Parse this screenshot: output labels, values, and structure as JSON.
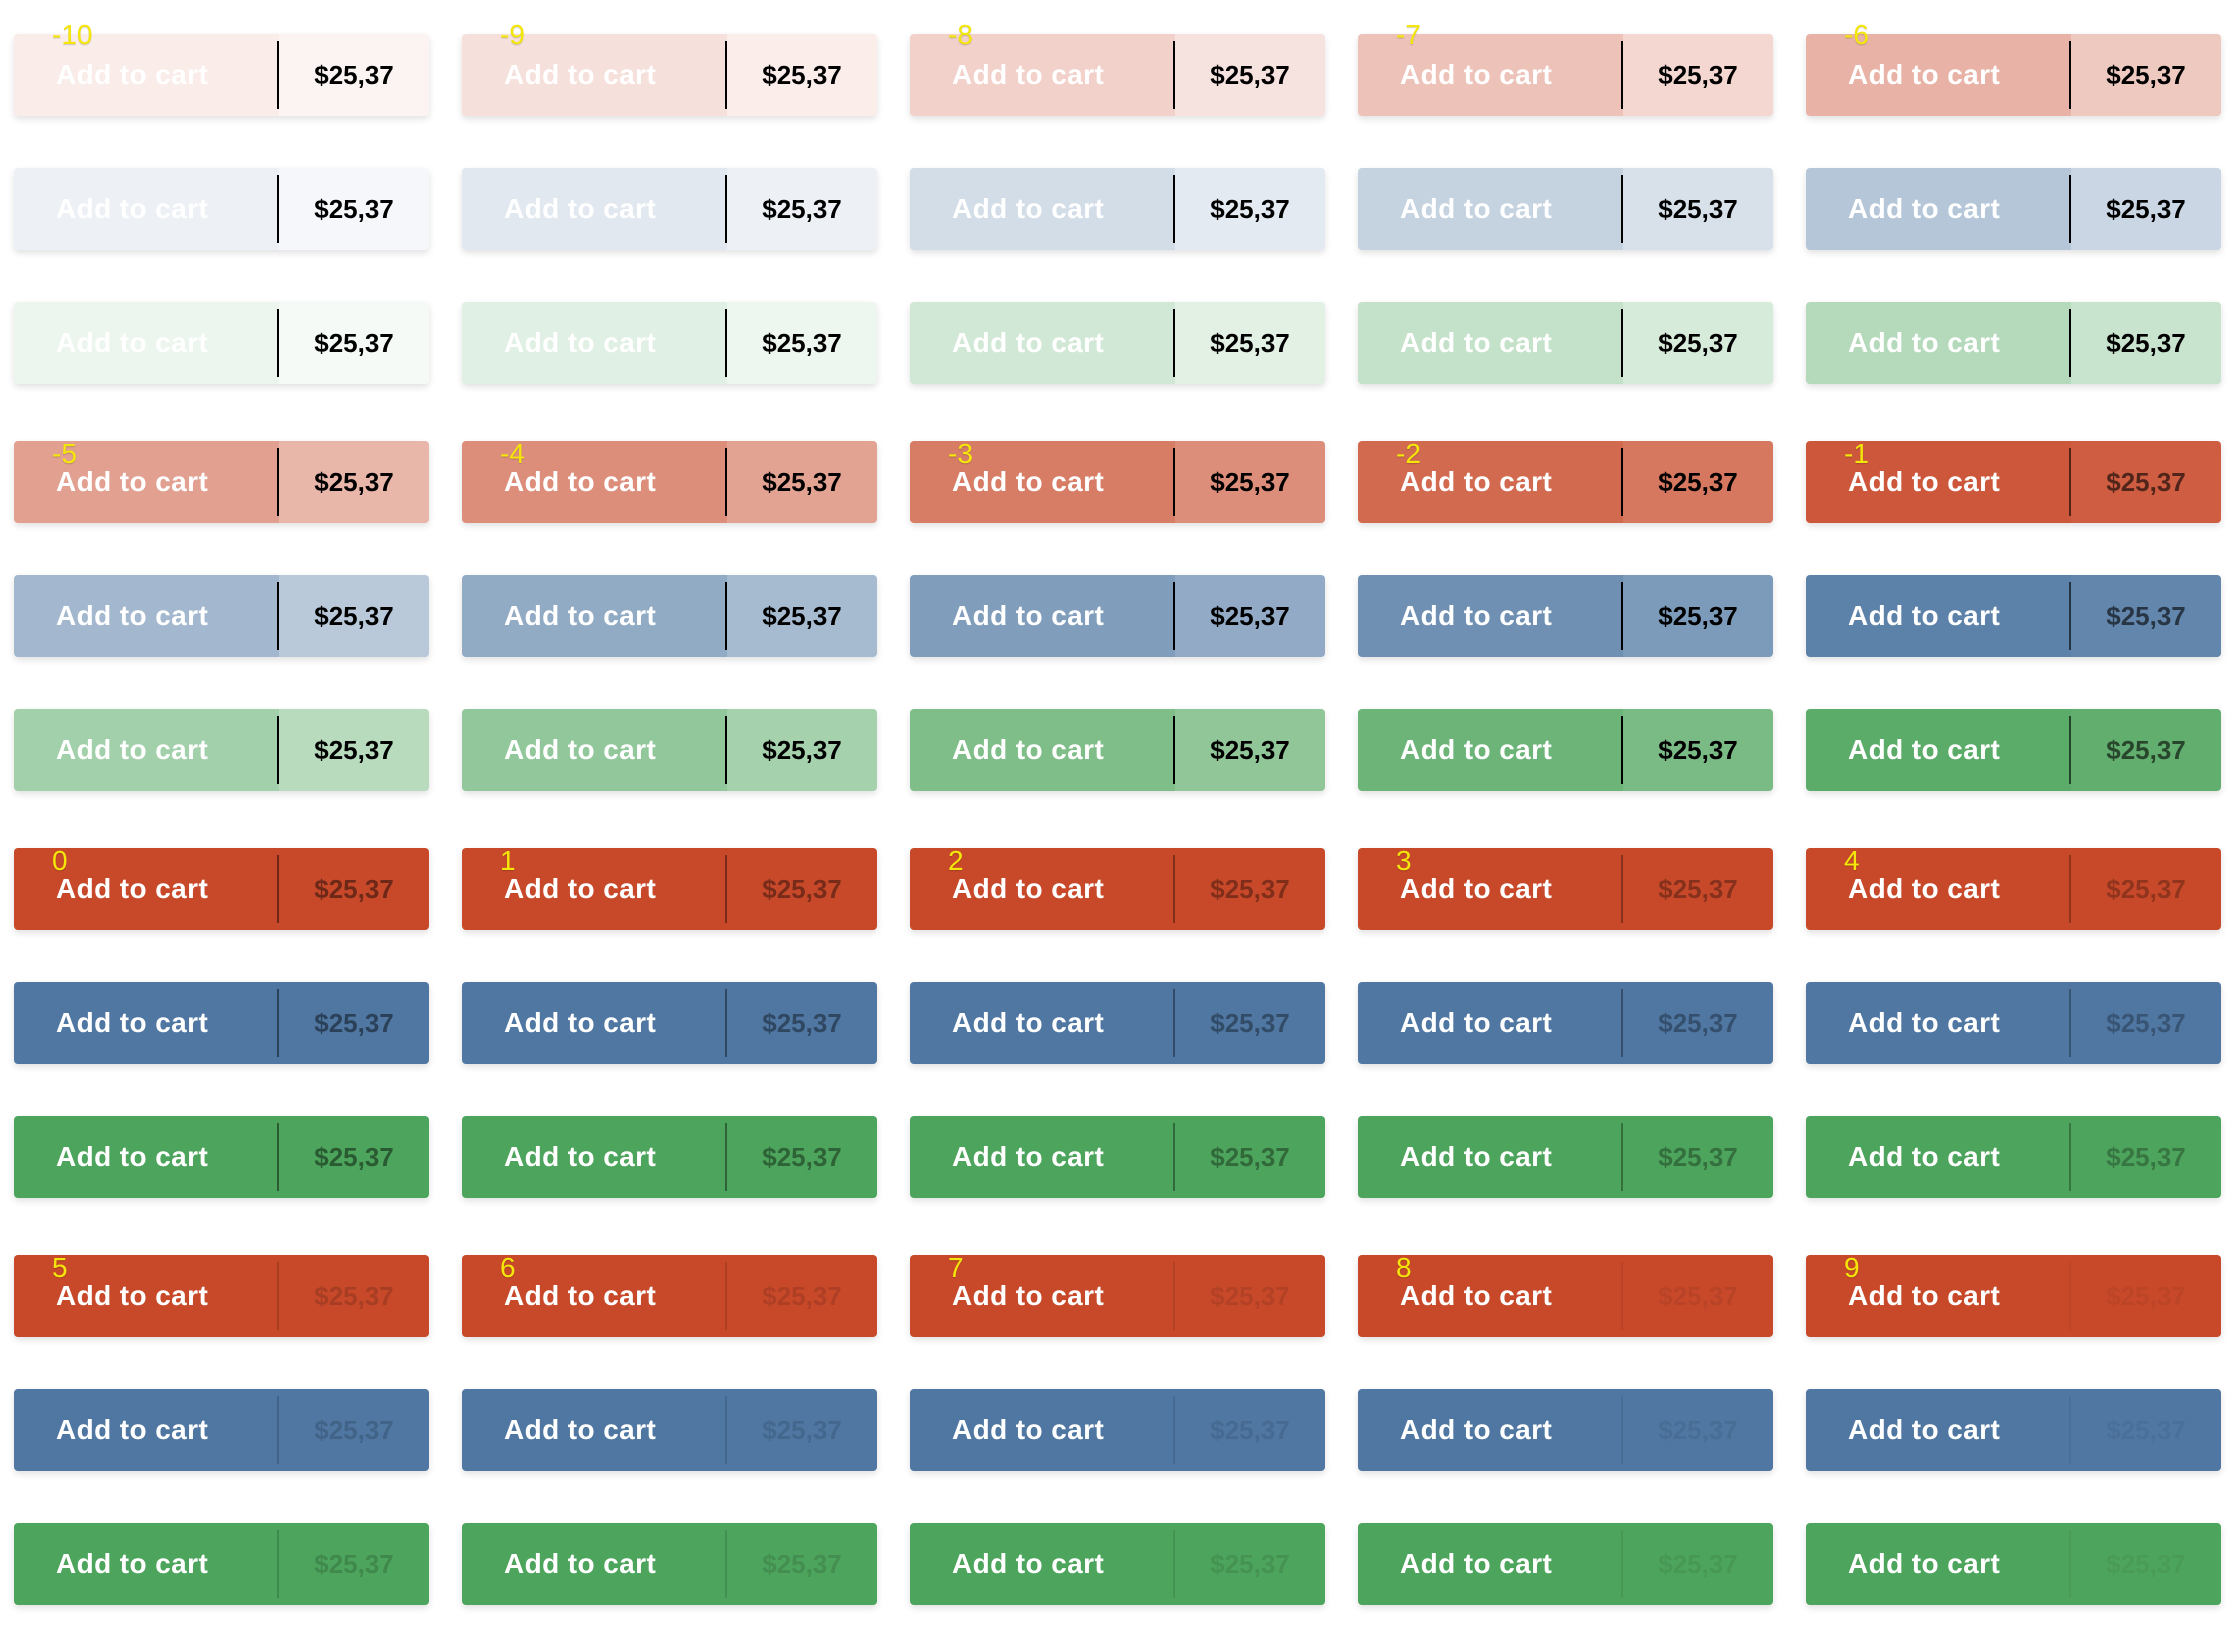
{
  "button": {
    "label": "Add to cart",
    "price": "$25,37"
  },
  "step_label_color": "#f4e609",
  "palette": [
    {
      "name": "red",
      "hex": "#c8492a"
    },
    {
      "name": "blue",
      "hex": "#4f77a2"
    },
    {
      "name": "green",
      "hex": "#4da45c"
    }
  ],
  "steps": [
    {
      "label": "-10",
      "bg_opacity": 0.1,
      "price_opacity": 1.0
    },
    {
      "label": "-9",
      "bg_opacity": 0.17,
      "price_opacity": 1.0
    },
    {
      "label": "-8",
      "bg_opacity": 0.25,
      "price_opacity": 1.0
    },
    {
      "label": "-7",
      "bg_opacity": 0.33,
      "price_opacity": 1.0
    },
    {
      "label": "-6",
      "bg_opacity": 0.42,
      "price_opacity": 1.0
    },
    {
      "label": "-5",
      "bg_opacity": 0.52,
      "price_opacity": 1.0
    },
    {
      "label": "-4",
      "bg_opacity": 0.62,
      "price_opacity": 1.0
    },
    {
      "label": "-3",
      "bg_opacity": 0.72,
      "price_opacity": 1.0
    },
    {
      "label": "-2",
      "bg_opacity": 0.82,
      "price_opacity": 1.0
    },
    {
      "label": "-1",
      "bg_opacity": 0.92,
      "price_opacity": 0.6
    },
    {
      "label": "0",
      "bg_opacity": 1.0,
      "price_opacity": 0.45
    },
    {
      "label": "1",
      "bg_opacity": 1.0,
      "price_opacity": 0.4
    },
    {
      "label": "2",
      "bg_opacity": 1.0,
      "price_opacity": 0.36
    },
    {
      "label": "3",
      "bg_opacity": 1.0,
      "price_opacity": 0.32
    },
    {
      "label": "4",
      "bg_opacity": 1.0,
      "price_opacity": 0.28
    },
    {
      "label": "5",
      "bg_opacity": 1.0,
      "price_opacity": 0.16
    },
    {
      "label": "6",
      "bg_opacity": 1.0,
      "price_opacity": 0.13
    },
    {
      "label": "7",
      "bg_opacity": 1.0,
      "price_opacity": 0.1
    },
    {
      "label": "8",
      "bg_opacity": 1.0,
      "price_opacity": 0.07
    },
    {
      "label": "9",
      "bg_opacity": 1.0,
      "price_opacity": 0.05
    }
  ]
}
